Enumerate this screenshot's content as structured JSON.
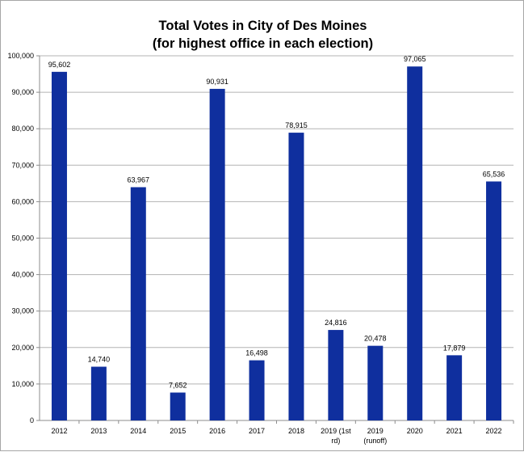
{
  "chart_data": {
    "type": "bar",
    "title_line1": "Total Votes in City of Des Moines",
    "title_line2": "(for highest office in each election)",
    "categories": [
      [
        "2012"
      ],
      [
        "2013"
      ],
      [
        "2014"
      ],
      [
        "2015"
      ],
      [
        "2016"
      ],
      [
        "2017"
      ],
      [
        "2018"
      ],
      [
        "2019 (1st",
        "rd)"
      ],
      [
        "2019",
        "(runoff)"
      ],
      [
        "2020"
      ],
      [
        "2021"
      ],
      [
        "2022"
      ]
    ],
    "values": [
      95602,
      14740,
      63967,
      7652,
      90931,
      16498,
      78915,
      24816,
      20478,
      97065,
      17879,
      65536
    ],
    "value_labels": [
      "95,602",
      "14,740",
      "63,967",
      "7,652",
      "90,931",
      "16,498",
      "78,915",
      "24,816",
      "20,478",
      "97,065",
      "17,879",
      "65,536"
    ],
    "yticks": [
      0,
      10000,
      20000,
      30000,
      40000,
      50000,
      60000,
      70000,
      80000,
      90000,
      100000
    ],
    "ytick_labels": [
      "0",
      "10,000",
      "20,000",
      "30,000",
      "40,000",
      "50,000",
      "60,000",
      "70,000",
      "80,000",
      "90,000",
      "100,000"
    ],
    "ylim": [
      0,
      100000
    ],
    "xlabel": "",
    "ylabel": "",
    "grid": true,
    "legend": "none",
    "colors": {
      "bar": "#0f2f9e",
      "grid": "#b3b3b3",
      "axis": "#8c8c8c"
    }
  }
}
